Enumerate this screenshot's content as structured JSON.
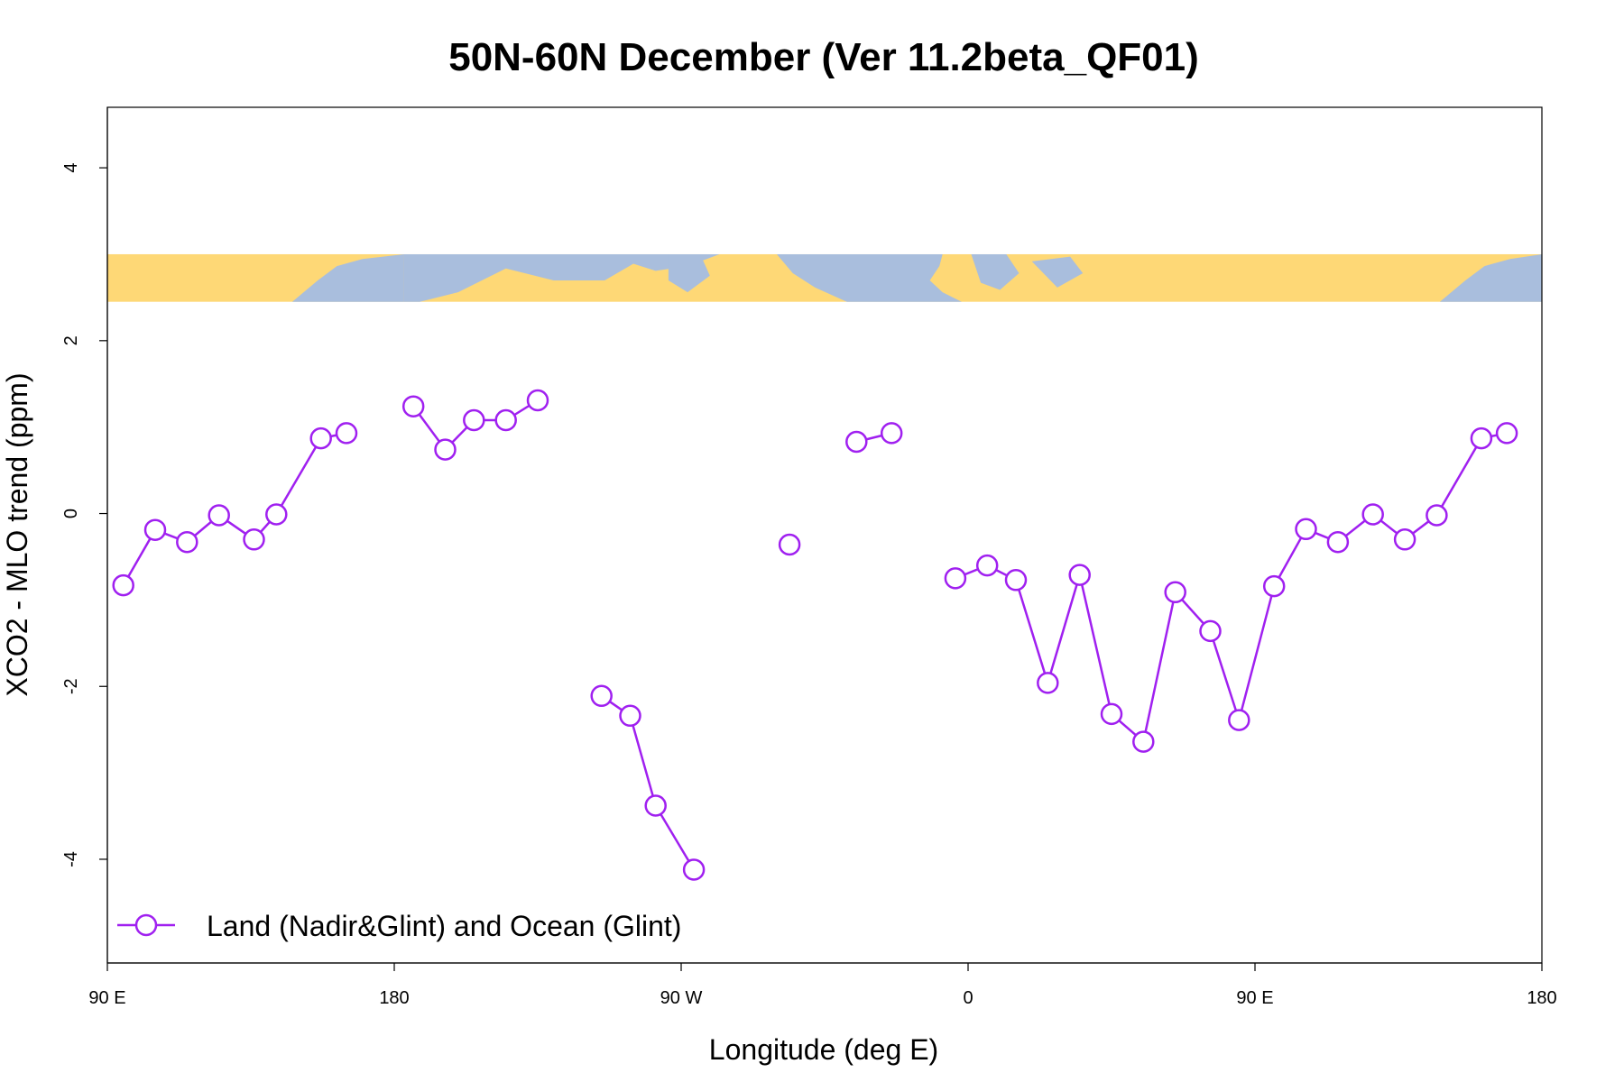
{
  "chart_data": {
    "type": "line",
    "title": "50N-60N December (Ver 11.2beta_QF01)",
    "xlabel": "Longitude (deg E)",
    "ylabel": "XCO2 - MLO trend (ppm)",
    "xlim": [
      90,
      540
    ],
    "ylim": [
      -5.2,
      4.7
    ],
    "x_ticks": [
      {
        "value": 90,
        "label": "90 E"
      },
      {
        "value": 180,
        "label": "180"
      },
      {
        "value": 270,
        "label": "90 W"
      },
      {
        "value": 360,
        "label": "0"
      },
      {
        "value": 450,
        "label": "90 E"
      },
      {
        "value": 540,
        "label": "180"
      }
    ],
    "y_ticks": [
      {
        "value": -4,
        "label": "-4"
      },
      {
        "value": -2,
        "label": "-2"
      },
      {
        "value": 0,
        "label": "0"
      },
      {
        "value": 2,
        "label": "2"
      },
      {
        "value": 4,
        "label": "4"
      }
    ],
    "map_strip": {
      "y_min": 2.45,
      "y_max": 3.0,
      "land_color": "#fed876",
      "ocean_color": "#a9bedd"
    },
    "series": [
      {
        "name": "Land (Nadir&Glint) and Ocean (Glint)",
        "color": "#a020f0",
        "segments": [
          [
            [
              95,
              -0.83
            ],
            [
              105,
              -0.19
            ],
            [
              115,
              -0.33
            ],
            [
              125,
              -0.02
            ],
            [
              136,
              -0.3
            ],
            [
              143,
              -0.01
            ],
            [
              157,
              0.87
            ],
            [
              165,
              0.93
            ]
          ],
          [
            [
              186,
              1.24
            ],
            [
              196,
              0.74
            ],
            [
              205,
              1.08
            ],
            [
              215,
              1.08
            ],
            [
              225,
              1.31
            ]
          ],
          [
            [
              245,
              -2.11
            ],
            [
              254,
              -2.34
            ],
            [
              262,
              -3.38
            ],
            [
              274,
              -4.12
            ]
          ],
          [
            [
              304,
              -0.36
            ]
          ],
          [
            [
              325,
              0.83
            ],
            [
              336,
              0.93
            ]
          ],
          [
            [
              356,
              -0.75
            ],
            [
              366,
              -0.6
            ],
            [
              375,
              -0.77
            ],
            [
              385,
              -1.96
            ],
            [
              395,
              -0.71
            ],
            [
              405,
              -2.32
            ],
            [
              415,
              -2.64
            ],
            [
              425,
              -0.91
            ],
            [
              436,
              -1.36
            ],
            [
              445,
              -2.39
            ],
            [
              456,
              -0.84
            ],
            [
              466,
              -0.18
            ],
            [
              476,
              -0.33
            ],
            [
              487,
              -0.01
            ],
            [
              497,
              -0.3
            ],
            [
              507,
              -0.02
            ],
            [
              521,
              0.87
            ],
            [
              529,
              0.93
            ]
          ]
        ]
      }
    ],
    "legend": {
      "label": "Land (Nadir&Glint) and Ocean (Glint)",
      "position": "bottom-left"
    }
  }
}
